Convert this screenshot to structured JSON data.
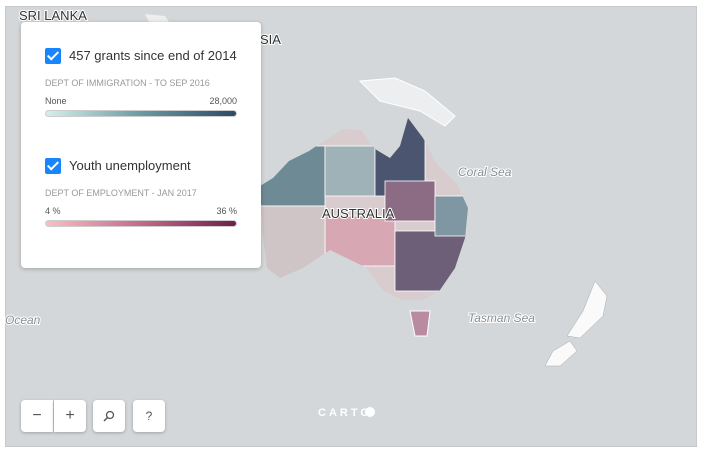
{
  "map_labels": {
    "sri_lanka": "SRI LANKA",
    "asia_fragment": "SIA",
    "australia": "AUSTRALIA",
    "coral_sea": "Coral Sea",
    "tasman_sea": "Tasman Sea",
    "ocean": "Ocean"
  },
  "legend": {
    "layers": [
      {
        "title": "457 grants since end of 2014",
        "source": "DEPT OF IMMIGRATION - TO SEP 2016",
        "min_label": "None",
        "max_label": "28,000"
      },
      {
        "title": "Youth unemployment",
        "source": "DEPT OF EMPLOYMENT - JAN 2017",
        "min_label": "4 %",
        "max_label": "36 %"
      }
    ]
  },
  "controls": {
    "zoom_out": "−",
    "zoom_in": "+",
    "help": "?"
  },
  "attribution": "CARTO"
}
